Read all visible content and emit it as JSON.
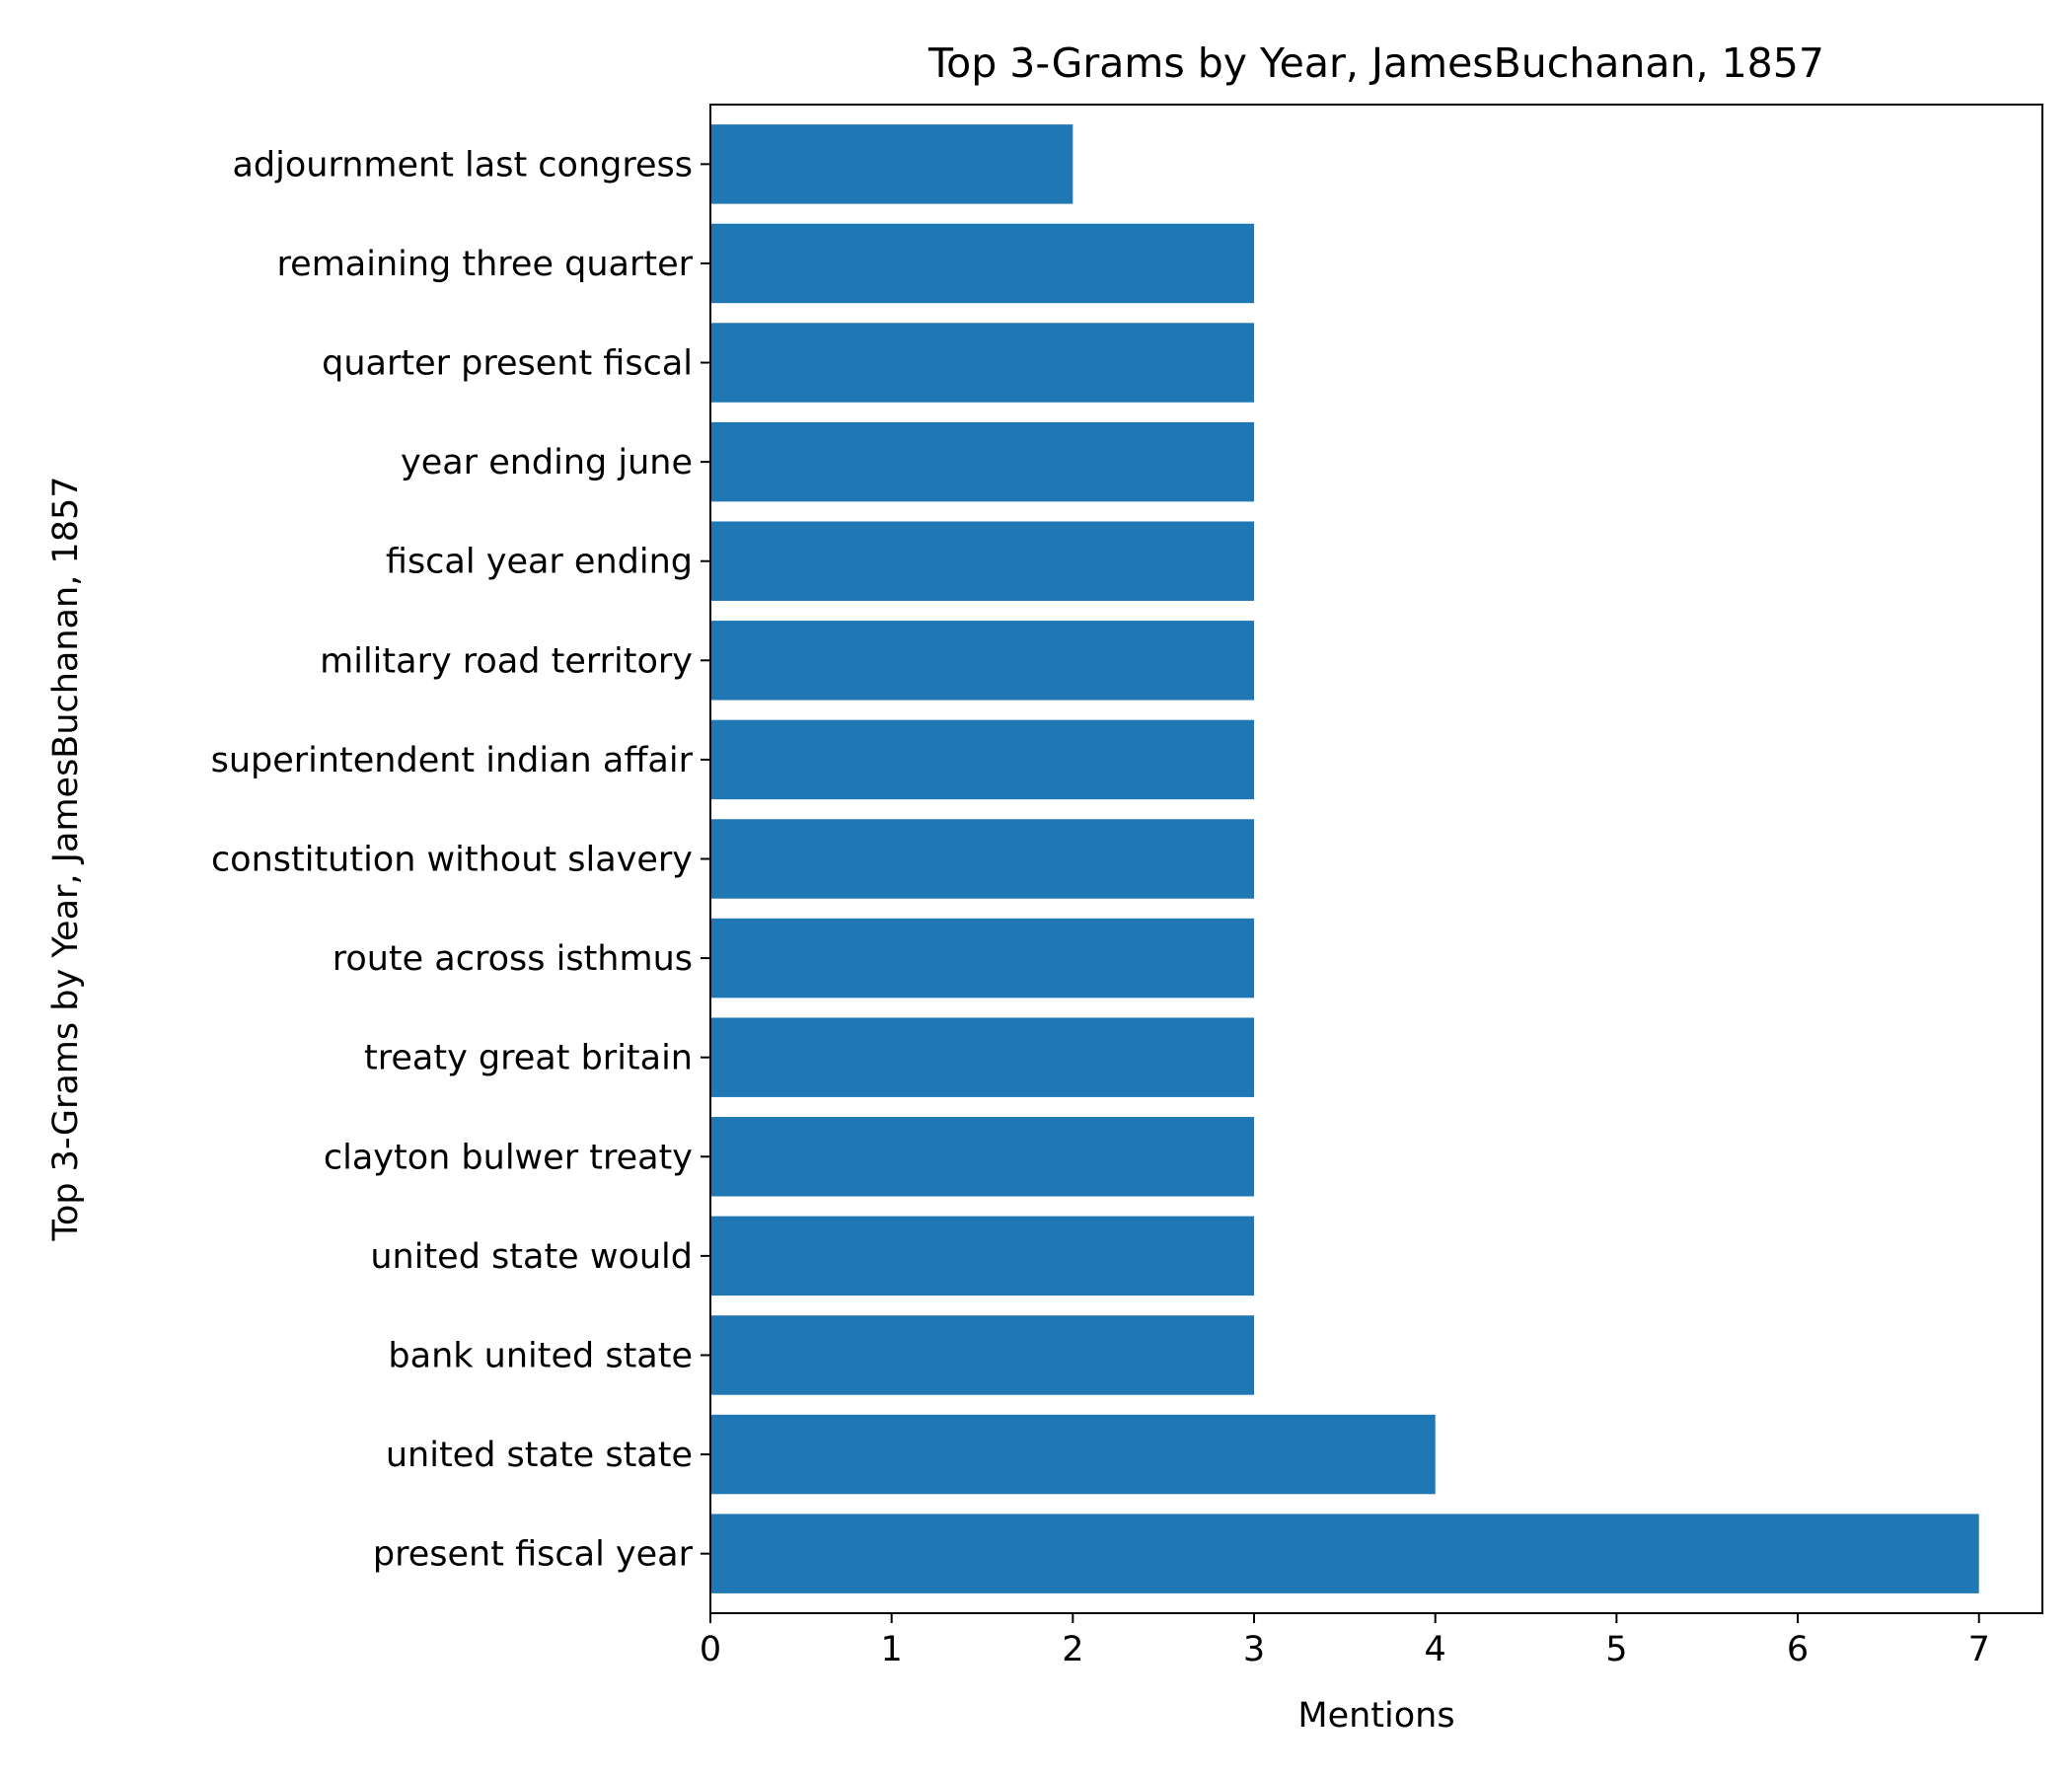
{
  "chart_data": {
    "type": "bar",
    "orientation": "horizontal",
    "title": "Top 3-Grams by Year, JamesBuchanan, 1857",
    "xlabel": "Mentions",
    "ylabel": "Top 3-Grams by Year, JamesBuchanan, 1857",
    "categories": [
      "present fiscal year",
      "united state state",
      "bank united state",
      "united state would",
      "clayton bulwer treaty",
      "treaty great britain",
      "route across isthmus",
      "constitution without slavery",
      "superintendent indian affair",
      "military road territory",
      "fiscal year ending",
      "year ending june",
      "quarter present fiscal",
      "remaining three quarter",
      "adjournment last congress"
    ],
    "values": [
      7,
      4,
      3,
      3,
      3,
      3,
      3,
      3,
      3,
      3,
      3,
      3,
      3,
      3,
      2
    ],
    "xlim": [
      0,
      7.35
    ],
    "xticks": [
      0,
      1,
      2,
      3,
      4,
      5,
      6,
      7
    ],
    "grid": false,
    "legend": "none",
    "colors": {
      "bar": "#1f77b4",
      "axis": "#000000"
    }
  }
}
